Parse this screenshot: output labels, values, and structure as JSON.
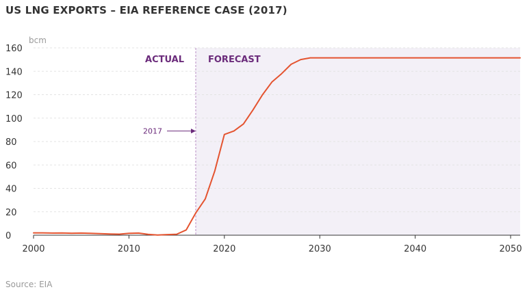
{
  "title": "US LNG EXPORTS – EIA REFERENCE CASE (2017)",
  "source": "Source: EIA",
  "colors": {
    "line": "#e4532f",
    "forecast_band": "#f3f0f7",
    "accent": "#6b2b7b",
    "grid": "#e3e3e3",
    "axis": "#333333",
    "muted": "#999999"
  },
  "chart_data": {
    "type": "line",
    "unit_label": "bcm",
    "xlim": [
      2000,
      2051
    ],
    "ylim": [
      0,
      160
    ],
    "x_ticks": [
      2000,
      2010,
      2020,
      2030,
      2040,
      2050
    ],
    "y_ticks": [
      0,
      20,
      40,
      60,
      80,
      100,
      120,
      140,
      160
    ],
    "grid": "horizontal dashed",
    "series": [
      {
        "x": [
          2000,
          2001,
          2002,
          2003,
          2004,
          2005,
          2006,
          2007,
          2008,
          2009,
          2010,
          2011,
          2012,
          2013,
          2014,
          2015,
          2016,
          2017,
          2018,
          2019,
          2020,
          2021,
          2022,
          2023,
          2024,
          2025,
          2026,
          2027,
          2028,
          2029,
          2030,
          2035,
          2040,
          2045,
          2050,
          2051
        ],
        "y": [
          2,
          2,
          1.8,
          1.9,
          1.7,
          1.8,
          1.6,
          1.3,
          1,
          0.9,
          1.6,
          1.8,
          0.7,
          0.2,
          0.5,
          0.8,
          4.5,
          19,
          31,
          55,
          86,
          89,
          95,
          107,
          120,
          131,
          138,
          146,
          150,
          151.5,
          151.5,
          151.5,
          151.5,
          151.5,
          151.5,
          151.5
        ]
      }
    ],
    "regions": [
      {
        "label": "ACTUAL",
        "from": 2000,
        "to": 2017
      },
      {
        "label": "FORECAST",
        "from": 2017,
        "to": 2051
      }
    ],
    "annotations": [
      {
        "text": "2017",
        "x": 2017,
        "y": 89
      }
    ]
  }
}
